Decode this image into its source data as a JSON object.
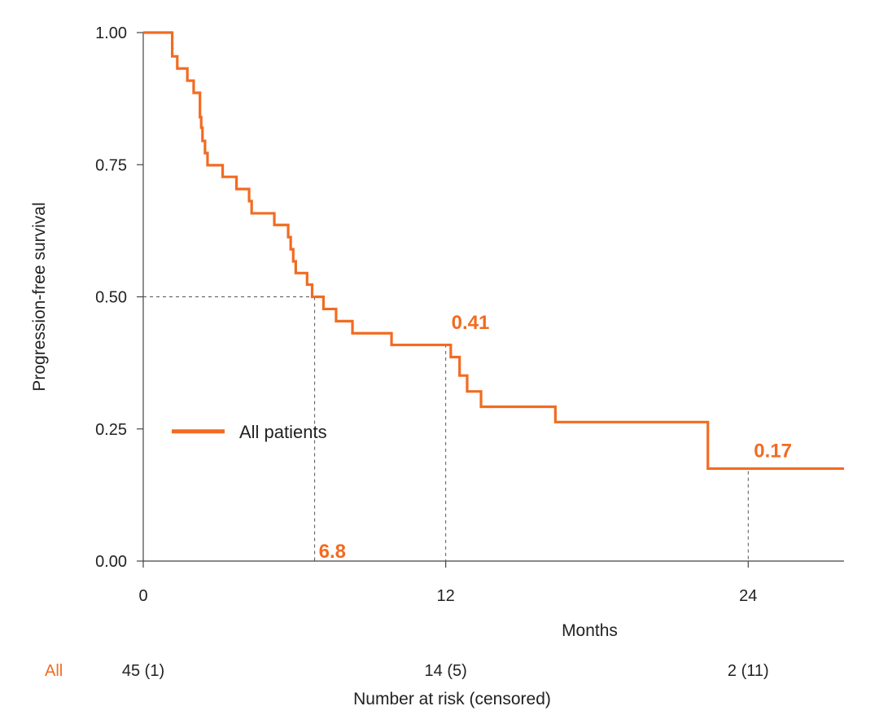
{
  "chart_data": {
    "type": "line",
    "subtype": "kaplan-meier-step",
    "title": "",
    "xlabel": "Months",
    "ylabel": "Progression-free survival",
    "xlim": [
      0,
      27.8
    ],
    "ylim": [
      0,
      1
    ],
    "x_ticks": [
      0,
      12,
      24
    ],
    "x_tick_labels": [
      "0",
      "12",
      "24"
    ],
    "y_ticks": [
      0,
      0.25,
      0.5,
      0.75,
      1
    ],
    "y_tick_labels": [
      "0.00",
      "0.25",
      "0.50",
      "0.75",
      "1.00"
    ],
    "grid": false,
    "color": "#F26B21",
    "legend": {
      "position": "center-left",
      "entries": [
        "All patients"
      ]
    },
    "series": [
      {
        "name": "All patients",
        "x": [
          0,
          1.15,
          1.35,
          1.75,
          2.0,
          2.25,
          2.3,
          2.35,
          2.45,
          2.55,
          3.15,
          3.7,
          4.2,
          4.3,
          5.2,
          5.75,
          5.85,
          5.95,
          6.05,
          6.5,
          6.7,
          7.15,
          7.65,
          8.3,
          9.85,
          12.2,
          12.55,
          12.85,
          13.4,
          16.35,
          22.4,
          27.8
        ],
        "y": [
          1.0,
          0.955,
          0.932,
          0.909,
          0.886,
          0.84,
          0.82,
          0.795,
          0.772,
          0.749,
          0.727,
          0.704,
          0.681,
          0.658,
          0.636,
          0.613,
          0.59,
          0.567,
          0.545,
          0.523,
          0.5,
          0.477,
          0.454,
          0.431,
          0.409,
          0.386,
          0.351,
          0.321,
          0.292,
          0.263,
          0.175,
          0.175
        ]
      }
    ],
    "reference_lines": [
      {
        "type": "median",
        "x": 6.8,
        "y": 0.5
      },
      {
        "type": "landmark",
        "x": 12,
        "y": 0.41
      },
      {
        "type": "landmark",
        "x": 24,
        "y": 0.17
      }
    ],
    "annotations": [
      {
        "text": "6.8",
        "x": 6.8,
        "y": 0.0
      },
      {
        "text": "0.41",
        "x": 12,
        "y": 0.41
      },
      {
        "text": "0.17",
        "x": 24,
        "y": 0.17
      }
    ],
    "risk_table": {
      "title": "Number at risk (censored)",
      "row_label": "All",
      "times": [
        0,
        12,
        24
      ],
      "values": [
        "45 (1)",
        "14 (5)",
        "2 (11)"
      ]
    }
  }
}
